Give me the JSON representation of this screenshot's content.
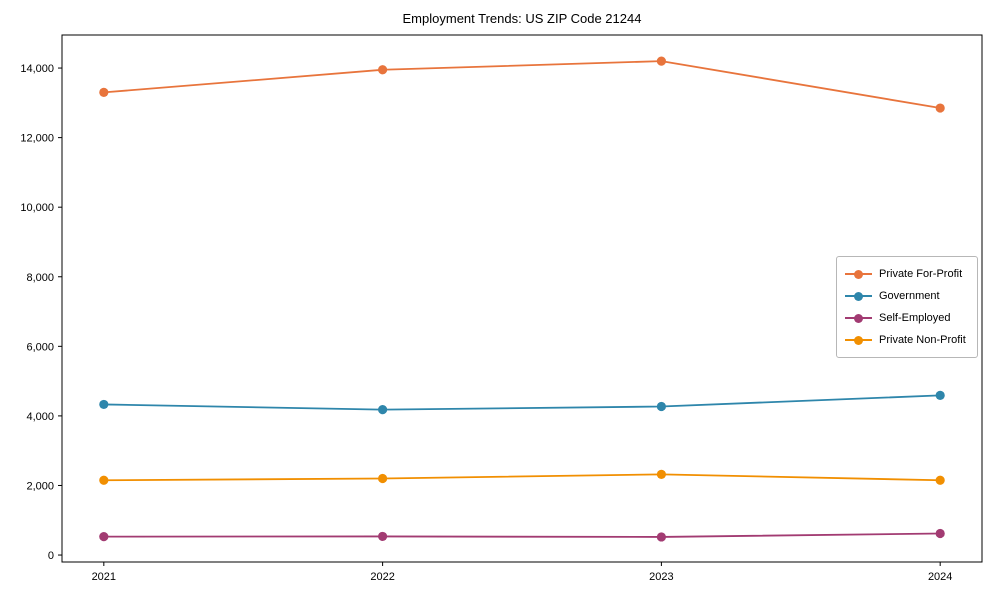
{
  "chart_data": {
    "type": "line",
    "title": "Employment Trends: US ZIP Code 21244",
    "xlabel": "",
    "ylabel": "",
    "x": [
      2021,
      2022,
      2023,
      2024
    ],
    "xtick_labels": [
      "2021",
      "2022",
      "2023",
      "2024"
    ],
    "ytick_values": [
      0,
      2000,
      4000,
      6000,
      8000,
      10000,
      12000,
      14000
    ],
    "ytick_labels": [
      "0",
      "2,000",
      "4,000",
      "6,000",
      "8,000",
      "10,000",
      "12,000",
      "14,000"
    ],
    "xlim": [
      2020.85,
      2024.15
    ],
    "ylim": [
      -200,
      14950
    ],
    "grid": false,
    "legend_position": "center-right",
    "series": [
      {
        "name": "Private For-Profit",
        "color": "#E8743C",
        "marker": "circle",
        "values": [
          13300,
          13950,
          14200,
          12850
        ]
      },
      {
        "name": "Government",
        "color": "#2E86AB",
        "marker": "circle",
        "values": [
          4330,
          4180,
          4270,
          4590
        ]
      },
      {
        "name": "Self-Employed",
        "color": "#A23B72",
        "marker": "circle",
        "values": [
          530,
          535,
          520,
          620
        ]
      },
      {
        "name": "Private Non-Profit",
        "color": "#F18F01",
        "marker": "circle",
        "values": [
          2150,
          2200,
          2320,
          2150
        ]
      }
    ]
  }
}
